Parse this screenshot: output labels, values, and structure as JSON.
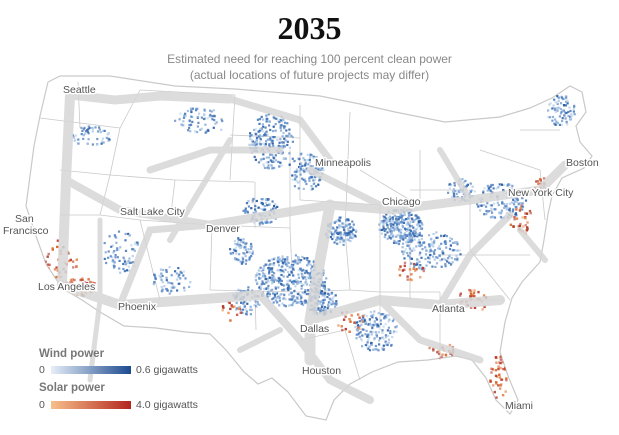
{
  "header": {
    "title": "2035",
    "subtitle_line1": "Estimated need for reaching 100 percent clean power",
    "subtitle_line2": "(actual locations of future projects may differ)"
  },
  "map": {
    "cities": {
      "seattle": "Seattle",
      "minneapolis": "Minneapolis",
      "boston": "Boston",
      "salt_lake_city": "Salt Lake City",
      "chicago": "Chicago",
      "new_york_city": "New York City",
      "san_francisco_line1": "San",
      "san_francisco_line2": "Francisco",
      "denver": "Denver",
      "los_angeles": "Los Angeles",
      "phoenix": "Phoenix",
      "atlanta": "Atlanta",
      "dallas": "Dallas",
      "houston": "Houston",
      "miami": "Miami"
    },
    "colors": {
      "land": "#ffffff",
      "state_border": "#c9c9c9",
      "transmission": "#d6d6d6",
      "wind": "#3a6fb5",
      "wind_light": "#b7d0ea",
      "solar": "#d9662a"
    }
  },
  "legend": {
    "wind": {
      "title": "Wind power",
      "min_label": "0",
      "max_label": "0.6 gigawatts",
      "color_low": "#e6eef8",
      "color_high": "#1d4a8f"
    },
    "solar": {
      "title": "Solar power",
      "min_label": "0",
      "max_label": "4.0 gigawatts",
      "color_low": "#f7c08a",
      "color_high": "#b3261e"
    }
  }
}
